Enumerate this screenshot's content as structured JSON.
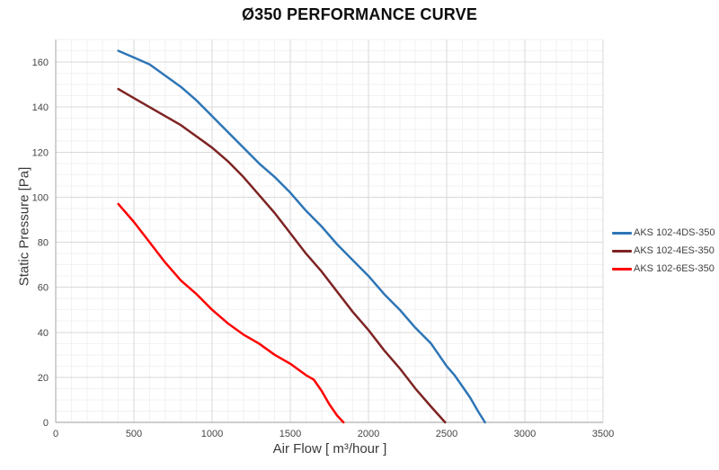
{
  "title": "Ø350 PERFORMANCE CURVE",
  "chart_data": {
    "type": "line",
    "title": "Ø350 PERFORMANCE CURVE",
    "xlabel": "Air Flow [ m³/hour ]",
    "ylabel": "Static Pressure [Pa]",
    "grid": "major+minor",
    "legend_position": "right-middle",
    "background_color": "#FFFFFF",
    "minor_grid_color": "#F2F2F2",
    "major_grid_color": "#D9D9D9",
    "axis_line_color": "#A6A6A6",
    "tick_label_color": "#454545",
    "x_axis": {
      "min": 0,
      "max": 3500,
      "major_step": 500,
      "minor_step": 100,
      "tick_labels": [
        "0",
        "500",
        "1000",
        "1500",
        "2000",
        "2500",
        "3000",
        "3500"
      ]
    },
    "y_axis": {
      "min": 0,
      "max": 170,
      "major_step": 20,
      "minor_step": 5,
      "tick_labels": [
        "0",
        "20",
        "40",
        "60",
        "80",
        "100",
        "120",
        "140",
        "160"
      ]
    },
    "series": [
      {
        "name": "AKS 102-4DS-350",
        "color": "#2E75B6",
        "points": [
          [
            400,
            165
          ],
          [
            500,
            162
          ],
          [
            600,
            159
          ],
          [
            700,
            154
          ],
          [
            800,
            149
          ],
          [
            900,
            143
          ],
          [
            1000,
            136
          ],
          [
            1100,
            129
          ],
          [
            1200,
            122
          ],
          [
            1300,
            115
          ],
          [
            1400,
            109
          ],
          [
            1500,
            102
          ],
          [
            1600,
            94
          ],
          [
            1700,
            87
          ],
          [
            1800,
            79
          ],
          [
            1900,
            72
          ],
          [
            2000,
            65
          ],
          [
            2100,
            57
          ],
          [
            2200,
            50
          ],
          [
            2300,
            42
          ],
          [
            2400,
            35
          ],
          [
            2500,
            25
          ],
          [
            2550,
            21
          ],
          [
            2600,
            16
          ],
          [
            2650,
            11
          ],
          [
            2700,
            5
          ],
          [
            2745,
            0
          ]
        ]
      },
      {
        "name": "AKS 102-4ES-350",
        "color": "#7E2323",
        "points": [
          [
            400,
            148
          ],
          [
            500,
            144
          ],
          [
            600,
            140
          ],
          [
            700,
            136
          ],
          [
            800,
            132
          ],
          [
            900,
            127
          ],
          [
            1000,
            122
          ],
          [
            1100,
            116
          ],
          [
            1200,
            109
          ],
          [
            1300,
            101
          ],
          [
            1400,
            93
          ],
          [
            1500,
            84
          ],
          [
            1600,
            75
          ],
          [
            1700,
            67
          ],
          [
            1800,
            58
          ],
          [
            1900,
            49
          ],
          [
            2000,
            41
          ],
          [
            2100,
            32
          ],
          [
            2200,
            24
          ],
          [
            2300,
            15
          ],
          [
            2400,
            7
          ],
          [
            2490,
            0
          ]
        ]
      },
      {
        "name": "AKS 102-6ES-350",
        "color": "#FF0000",
        "points": [
          [
            400,
            97
          ],
          [
            500,
            89
          ],
          [
            600,
            80
          ],
          [
            700,
            71
          ],
          [
            800,
            63
          ],
          [
            900,
            57
          ],
          [
            1000,
            50
          ],
          [
            1050,
            47
          ],
          [
            1100,
            44
          ],
          [
            1200,
            39
          ],
          [
            1300,
            35
          ],
          [
            1400,
            30
          ],
          [
            1500,
            26
          ],
          [
            1600,
            21
          ],
          [
            1650,
            19
          ],
          [
            1700,
            14
          ],
          [
            1750,
            8
          ],
          [
            1800,
            3
          ],
          [
            1840,
            0
          ]
        ]
      }
    ]
  }
}
